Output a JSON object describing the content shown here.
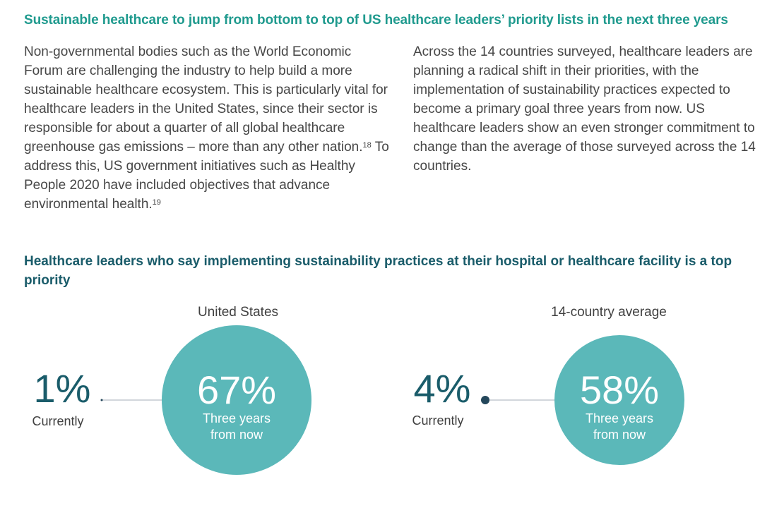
{
  "headline": "Sustainable healthcare to jump from bottom to top of US healthcare leaders’ priority lists in the next three years",
  "left_column": {
    "text_a": "Non-governmental bodies such as the World Economic Forum are challenging the industry to help build a more sustainable healthcare ecosystem. This is particularly vital for healthcare leaders in the United States, since their sector is responsible for about a quarter of all global healthcare greenhouse gas emissions – more than any other nation.",
    "footnote_a": "18",
    "text_b": " To address this, US government initiatives such as Healthy People 2020 have included objectives that advance environmental health.",
    "footnote_b": "19"
  },
  "right_column": {
    "text": "Across the 14 countries surveyed, healthcare leaders are planning a radical shift in their priorities, with the implementation of sustainability practices expected to become a primary goal three years from now. US healthcare leaders show an even stronger commitment to change than the average of those surveyed across the 14 countries."
  },
  "colors": {
    "headline": "#1f9a8e",
    "chart_title": "#1a5c6a",
    "current_value": "#1a5c6a",
    "circle_fill": "#5bb8b9",
    "connector_line": "#c4c8d0",
    "dot": "#24475b"
  },
  "chart_data": {
    "type": "bubble-comparison",
    "title": "Healthcare leaders who say implementing sustainability practices at their hospital or healthcare facility is a top priority",
    "unit": "%",
    "groups": [
      {
        "name": "United States",
        "current": {
          "value": 1,
          "label": "1%",
          "caption": "Currently"
        },
        "future": {
          "value": 67,
          "label": "67%",
          "caption_lines": [
            "Three years",
            "from now"
          ]
        }
      },
      {
        "name": "14-country average",
        "current": {
          "value": 4,
          "label": "4%",
          "caption": "Currently"
        },
        "future": {
          "value": 58,
          "label": "58%",
          "caption_lines": [
            "Three years",
            "from now"
          ]
        }
      }
    ]
  }
}
